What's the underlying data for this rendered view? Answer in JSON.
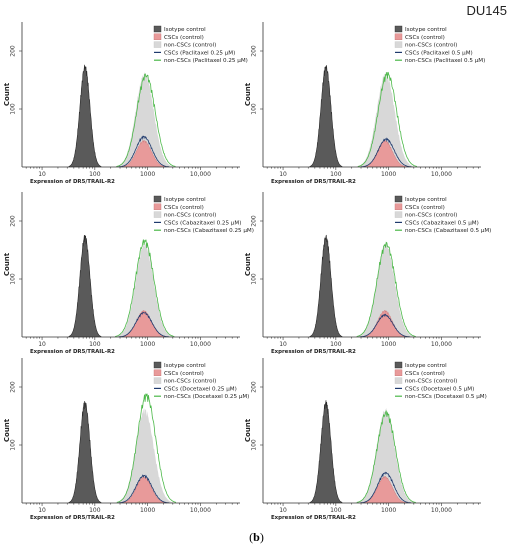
{
  "figure": {
    "title": "DU145",
    "caption_label": "b"
  },
  "colors": {
    "isotype_fill": "#5a5a5a",
    "isotype_stroke": "#2b2b2b",
    "csc_control_fill": "#e89a9a",
    "noncsc_control_fill": "#d8d8d8",
    "csc_treated_line": "#1f3a6e",
    "noncsc_treated_line": "#4bb848"
  },
  "chart_data": [
    {
      "type": "area",
      "x_scale": "log",
      "xlabel": "Expression of DR5/TRAIL-R2",
      "ylabel": "Count",
      "xticks": [
        "10",
        "100",
        "1000",
        "10,000"
      ],
      "yticks": [
        "100",
        "200"
      ],
      "ylim": [
        0,
        250
      ],
      "legend": [
        "Isotype control",
        "CSCs (control)",
        "non-CSCs (control)",
        "CSCs (Paclitaxel 0.25 μM)",
        "non-CSCs (Paclitaxel 0.25 μM)"
      ],
      "series_peaks": [
        {
          "name": "Isotype control",
          "peak_x": 65,
          "peak_count": 172
        },
        {
          "name": "CSCs (control)",
          "peak_x": 850,
          "peak_count": 45
        },
        {
          "name": "non-CSCs (control)",
          "peak_x": 880,
          "peak_count": 160
        },
        {
          "name": "CSCs (Paclitaxel 0.25 μM)",
          "peak_x": 850,
          "peak_count": 52
        },
        {
          "name": "non-CSCs (Paclitaxel 0.25 μM)",
          "peak_x": 930,
          "peak_count": 158
        }
      ]
    },
    {
      "type": "area",
      "x_scale": "log",
      "xlabel": "Expression of DR5/TRAIL-R2",
      "ylabel": "Count",
      "xticks": [
        "10",
        "100",
        "1000",
        "10,000"
      ],
      "yticks": [
        "100",
        "200"
      ],
      "ylim": [
        0,
        250
      ],
      "legend": [
        "Isotype control",
        "CSCs (control)",
        "non-CSCs (control)",
        "CSCs (Paclitaxel 0.5 μM)",
        "non-CSCs (Paclitaxel 0.5 μM)"
      ],
      "series_peaks": [
        {
          "name": "Isotype control",
          "peak_x": 65,
          "peak_count": 172
        },
        {
          "name": "CSCs (control)",
          "peak_x": 850,
          "peak_count": 45
        },
        {
          "name": "non-CSCs (control)",
          "peak_x": 880,
          "peak_count": 160
        },
        {
          "name": "CSCs (Paclitaxel 0.5 μM)",
          "peak_x": 900,
          "peak_count": 48
        },
        {
          "name": "non-CSCs (Paclitaxel 0.5 μM)",
          "peak_x": 950,
          "peak_count": 160
        }
      ]
    },
    {
      "type": "area",
      "x_scale": "log",
      "xlabel": "Expression of DR5/TRAIL-R2",
      "ylabel": "Count",
      "xticks": [
        "10",
        "100",
        "1000",
        "10,000"
      ],
      "yticks": [
        "100",
        "200"
      ],
      "ylim": [
        0,
        250
      ],
      "legend": [
        "Isotype control",
        "CSCs (control)",
        "non-CSCs (control)",
        "CSCs (Cabazitaxel 0.25 μM)",
        "non-CSCs (Cabazitaxel 0.25 μM)"
      ],
      "series_peaks": [
        {
          "name": "Isotype control",
          "peak_x": 65,
          "peak_count": 172
        },
        {
          "name": "CSCs (control)",
          "peak_x": 850,
          "peak_count": 45
        },
        {
          "name": "non-CSCs (control)",
          "peak_x": 880,
          "peak_count": 160
        },
        {
          "name": "CSCs (Cabazitaxel 0.25 μM)",
          "peak_x": 850,
          "peak_count": 42
        },
        {
          "name": "non-CSCs (Cabazitaxel 0.25 μM)",
          "peak_x": 880,
          "peak_count": 165
        }
      ]
    },
    {
      "type": "area",
      "x_scale": "log",
      "xlabel": "Expression of DR5/TRAIL-R2",
      "ylabel": "Count",
      "xticks": [
        "10",
        "100",
        "1000",
        "10,000"
      ],
      "yticks": [
        "100",
        "200"
      ],
      "ylim": [
        0,
        250
      ],
      "legend": [
        "Isotype control",
        "CSCs (control)",
        "non-CSCs (control)",
        "CSCs (Cabazitaxel 0.5 μM)",
        "non-CSCs (Cabazitaxel 0.5 μM)"
      ],
      "series_peaks": [
        {
          "name": "Isotype control",
          "peak_x": 65,
          "peak_count": 172
        },
        {
          "name": "CSCs (control)",
          "peak_x": 850,
          "peak_count": 45
        },
        {
          "name": "non-CSCs (control)",
          "peak_x": 880,
          "peak_count": 160
        },
        {
          "name": "CSCs (Cabazitaxel 0.5 μM)",
          "peak_x": 850,
          "peak_count": 38
        },
        {
          "name": "non-CSCs (Cabazitaxel 0.5 μM)",
          "peak_x": 900,
          "peak_count": 160
        }
      ]
    },
    {
      "type": "area",
      "x_scale": "log",
      "xlabel": "Expression of DR5/TRAIL-R2",
      "ylabel": "Count",
      "xticks": [
        "10",
        "100",
        "1000",
        "10,000"
      ],
      "yticks": [
        "100",
        "200"
      ],
      "ylim": [
        0,
        250
      ],
      "legend": [
        "Isotype control",
        "CSCs (control)",
        "non-CSCs (control)",
        "CSCs (Docetaxel 0.25 μM)",
        "non-CSCs (Docetaxel 0.25 μM)"
      ],
      "series_peaks": [
        {
          "name": "Isotype control",
          "peak_x": 65,
          "peak_count": 172
        },
        {
          "name": "CSCs (control)",
          "peak_x": 850,
          "peak_count": 45
        },
        {
          "name": "non-CSCs (control)",
          "peak_x": 880,
          "peak_count": 160
        },
        {
          "name": "CSCs (Docetaxel 0.25 μM)",
          "peak_x": 850,
          "peak_count": 47
        },
        {
          "name": "non-CSCs (Docetaxel 0.25 μM)",
          "peak_x": 950,
          "peak_count": 185
        }
      ]
    },
    {
      "type": "area",
      "x_scale": "log",
      "xlabel": "Expression of DR5/TRAIL-R2",
      "ylabel": "Count",
      "xticks": [
        "10",
        "100",
        "1000",
        "10,000"
      ],
      "yticks": [
        "100",
        "200"
      ],
      "ylim": [
        0,
        250
      ],
      "legend": [
        "Isotype control",
        "CSCs (control)",
        "non-CSCs (control)",
        "CSCs (Docetaxel 0.5 μM)",
        "non-CSCs (Docetaxel 0.5 μM)"
      ],
      "series_peaks": [
        {
          "name": "Isotype control",
          "peak_x": 65,
          "peak_count": 172
        },
        {
          "name": "CSCs (control)",
          "peak_x": 850,
          "peak_count": 45
        },
        {
          "name": "non-CSCs (control)",
          "peak_x": 880,
          "peak_count": 160
        },
        {
          "name": "CSCs (Docetaxel 0.5 μM)",
          "peak_x": 880,
          "peak_count": 52
        },
        {
          "name": "non-CSCs (Docetaxel 0.5 μM)",
          "peak_x": 900,
          "peak_count": 155
        }
      ]
    }
  ]
}
